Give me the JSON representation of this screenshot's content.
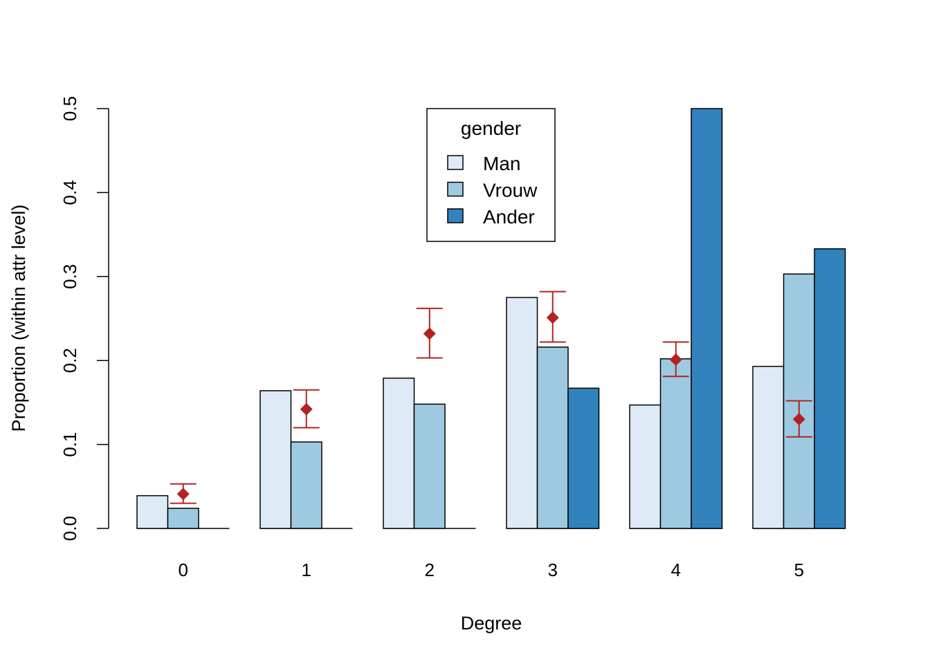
{
  "chart_data": {
    "type": "bar",
    "xlabel": "Degree",
    "ylabel": "Proportion (within attr level)",
    "categories": [
      "0",
      "1",
      "2",
      "3",
      "4",
      "5"
    ],
    "ylim": [
      0,
      0.5
    ],
    "y_ticks": [
      "0.0",
      "0.1",
      "0.2",
      "0.3",
      "0.4",
      "0.5"
    ],
    "grid": false,
    "legend": {
      "title": "gender",
      "placement": "top-center"
    },
    "series": [
      {
        "name": "Man",
        "color": "#deebf7",
        "values": [
          0.039,
          0.164,
          0.179,
          0.275,
          0.147,
          0.193
        ]
      },
      {
        "name": "Vrouw",
        "color": "#9ecae1",
        "values": [
          0.024,
          0.103,
          0.148,
          0.216,
          0.202,
          0.303
        ]
      },
      {
        "name": "Ander",
        "color": "#3182bd",
        "values": [
          0.0,
          0.0,
          0.0,
          0.167,
          0.5,
          0.333
        ]
      }
    ],
    "overlay": {
      "type": "point-with-error-bars",
      "marker": "diamond",
      "color": "#b22222",
      "points": [
        {
          "category": "0",
          "y": 0.041,
          "lower": 0.03,
          "upper": 0.053
        },
        {
          "category": "1",
          "y": 0.142,
          "lower": 0.12,
          "upper": 0.165
        },
        {
          "category": "2",
          "y": 0.232,
          "lower": 0.203,
          "upper": 0.262
        },
        {
          "category": "3",
          "y": 0.251,
          "lower": 0.222,
          "upper": 0.282
        },
        {
          "category": "4",
          "y": 0.201,
          "lower": 0.181,
          "upper": 0.222
        },
        {
          "category": "5",
          "y": 0.13,
          "lower": 0.109,
          "upper": 0.152
        }
      ]
    }
  }
}
